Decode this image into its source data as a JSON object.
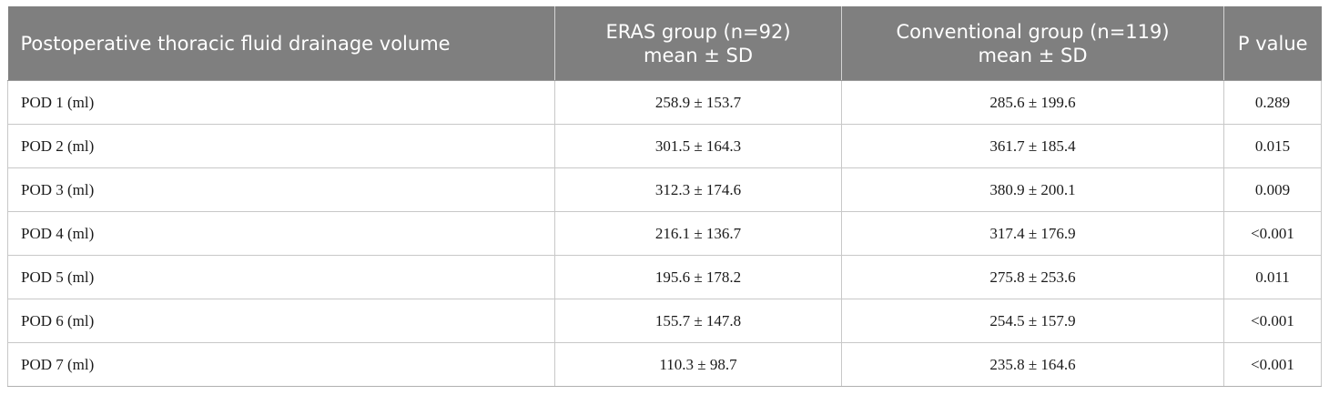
{
  "table": {
    "headers": [
      {
        "line1": "Postoperative thoracic fluid drainage volume",
        "line2": ""
      },
      {
        "line1": "ERAS group (n=92)",
        "line2": "mean ± SD"
      },
      {
        "line1": "Conventional group (n=119)",
        "line2": "mean ± SD"
      },
      {
        "line1": "P value",
        "line2": ""
      }
    ],
    "rows": [
      {
        "label": "POD 1 (ml)",
        "eras": "258.9 ± 153.7",
        "conventional": "285.6 ± 199.6",
        "p": "0.289"
      },
      {
        "label": "POD 2 (ml)",
        "eras": "301.5 ± 164.3",
        "conventional": "361.7 ± 185.4",
        "p": "0.015"
      },
      {
        "label": "POD 3 (ml)",
        "eras": "312.3 ± 174.6",
        "conventional": "380.9 ± 200.1",
        "p": "0.009"
      },
      {
        "label": "POD 4 (ml)",
        "eras": "216.1 ± 136.7",
        "conventional": "317.4 ± 176.9",
        "p": "<0.001"
      },
      {
        "label": "POD 5 (ml)",
        "eras": "195.6 ± 178.2",
        "conventional": "275.8 ± 253.6",
        "p": "0.011"
      },
      {
        "label": "POD 6 (ml)",
        "eras": "155.7 ± 147.8",
        "conventional": "254.5 ± 157.9",
        "p": "<0.001"
      },
      {
        "label": "POD 7 (ml)",
        "eras": "110.3 ± 98.7",
        "conventional": "235.8 ± 164.6",
        "p": "<0.001"
      }
    ]
  },
  "colors": {
    "header_bg": "#7f7f7f",
    "header_text": "#ffffff",
    "grid": "#c8c8c8"
  }
}
